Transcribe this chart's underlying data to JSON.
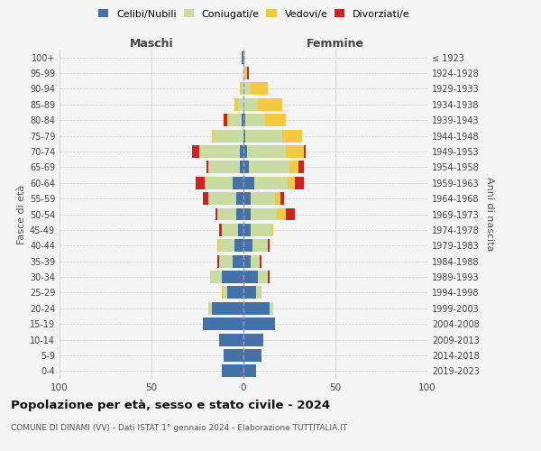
{
  "age_groups": [
    "0-4",
    "5-9",
    "10-14",
    "15-19",
    "20-24",
    "25-29",
    "30-34",
    "35-39",
    "40-44",
    "45-49",
    "50-54",
    "55-59",
    "60-64",
    "65-69",
    "70-74",
    "75-79",
    "80-84",
    "85-89",
    "90-94",
    "95-99",
    "100+"
  ],
  "birth_years": [
    "2019-2023",
    "2014-2018",
    "2009-2013",
    "2004-2008",
    "1999-2003",
    "1994-1998",
    "1989-1993",
    "1984-1988",
    "1979-1983",
    "1974-1978",
    "1969-1973",
    "1964-1968",
    "1959-1963",
    "1954-1958",
    "1949-1953",
    "1944-1948",
    "1939-1943",
    "1934-1938",
    "1929-1933",
    "1924-1928",
    "≤ 1923"
  ],
  "colors": {
    "celibi": "#4472a8",
    "coniugati": "#c8dba0",
    "vedovi": "#f5c842",
    "divorziati": "#cc2222"
  },
  "maschi": {
    "celibi": [
      12,
      11,
      13,
      22,
      17,
      9,
      12,
      6,
      5,
      3,
      4,
      4,
      6,
      2,
      2,
      0,
      1,
      0,
      0,
      0,
      1
    ],
    "coniugati": [
      0,
      0,
      0,
      0,
      2,
      2,
      6,
      7,
      8,
      9,
      10,
      15,
      15,
      17,
      22,
      16,
      7,
      3,
      1,
      0,
      0
    ],
    "vedovi": [
      0,
      0,
      0,
      0,
      0,
      1,
      0,
      0,
      1,
      0,
      0,
      0,
      0,
      0,
      0,
      1,
      1,
      2,
      1,
      0,
      0
    ],
    "divorziati": [
      0,
      0,
      0,
      0,
      0,
      0,
      0,
      1,
      0,
      1,
      1,
      3,
      5,
      1,
      4,
      0,
      2,
      0,
      0,
      0,
      0
    ]
  },
  "femmine": {
    "celibi": [
      7,
      10,
      11,
      17,
      14,
      7,
      8,
      4,
      5,
      4,
      4,
      4,
      6,
      3,
      2,
      1,
      1,
      0,
      0,
      0,
      0
    ],
    "coniugati": [
      0,
      0,
      0,
      0,
      2,
      3,
      5,
      5,
      8,
      11,
      14,
      13,
      18,
      22,
      21,
      20,
      11,
      8,
      4,
      1,
      0
    ],
    "vedovi": [
      0,
      0,
      0,
      0,
      0,
      0,
      0,
      0,
      0,
      1,
      5,
      3,
      4,
      5,
      10,
      11,
      11,
      13,
      9,
      1,
      1
    ],
    "divorziati": [
      0,
      0,
      0,
      0,
      0,
      0,
      1,
      1,
      1,
      0,
      5,
      2,
      5,
      3,
      1,
      0,
      0,
      0,
      0,
      1,
      0
    ]
  },
  "title": "Popolazione per età, sesso e stato civile - 2024",
  "subtitle": "COMUNE DI DINAMI (VV) - Dati ISTAT 1° gennaio 2024 - Elaborazione TUTTITALIA.IT",
  "xlabel_left": "Maschi",
  "xlabel_right": "Femmine",
  "ylabel_left": "Fasce di età",
  "ylabel_right": "Anni di nascita",
  "legend_labels": [
    "Celibi/Nubili",
    "Coniugati/e",
    "Vedovi/e",
    "Divorziati/e"
  ],
  "xlim": 100,
  "background_color": "#f5f5f5",
  "grid_color": "#cccccc"
}
